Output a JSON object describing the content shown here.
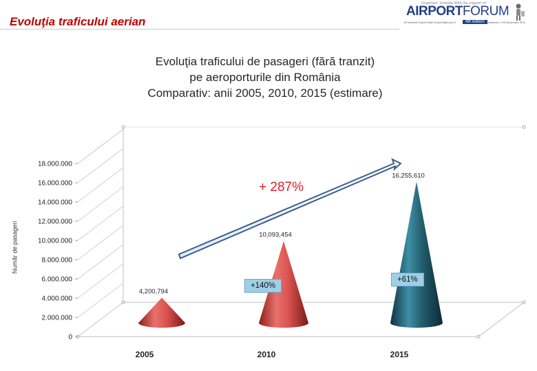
{
  "slide_title": "Evoluţia traficului aerian",
  "logo": {
    "brand": "AIRPORT",
    "brand_suffix": "FORUM",
    "organizer": "Organizer: trimedia     With the support of:",
    "edition": "4th edition",
    "venue": "JW Marriott Grand Hotel Grand Ballroom D",
    "date": "Bucharest, 17th November 2011"
  },
  "chart_data": {
    "type": "bar",
    "title_lines": [
      "Evoluţia traficului de pasageri (fără tranzit)",
      "pe aeroporturile din România",
      "Comparativ: anii 2005, 2010, 2015 (estimare)"
    ],
    "ylabel": "Număr de pasageri",
    "xlabel": "",
    "categories": [
      "2005",
      "2010",
      "2015"
    ],
    "values": [
      4200794,
      10093454,
      16255610
    ],
    "data_labels": [
      "4,200,794",
      "10,093,454",
      "16,255,610"
    ],
    "ylim": [
      0,
      18000000
    ],
    "yticks": [
      0,
      2000000,
      4000000,
      6000000,
      8000000,
      10000000,
      12000000,
      14000000,
      16000000,
      18000000
    ],
    "ytick_labels": [
      "0",
      "2.000.000",
      "4.000.000",
      "6.000.000",
      "8.000.000",
      "10.000.000",
      "12.000.000",
      "14.000.000",
      "16.000.000",
      "18.000.000"
    ],
    "colors": [
      "#d9534f",
      "#d9534f",
      "#235e6f"
    ],
    "annotations": {
      "total_growth": "+ 287%",
      "growth_2010": "+140%",
      "growth_2015": "+61%"
    }
  }
}
